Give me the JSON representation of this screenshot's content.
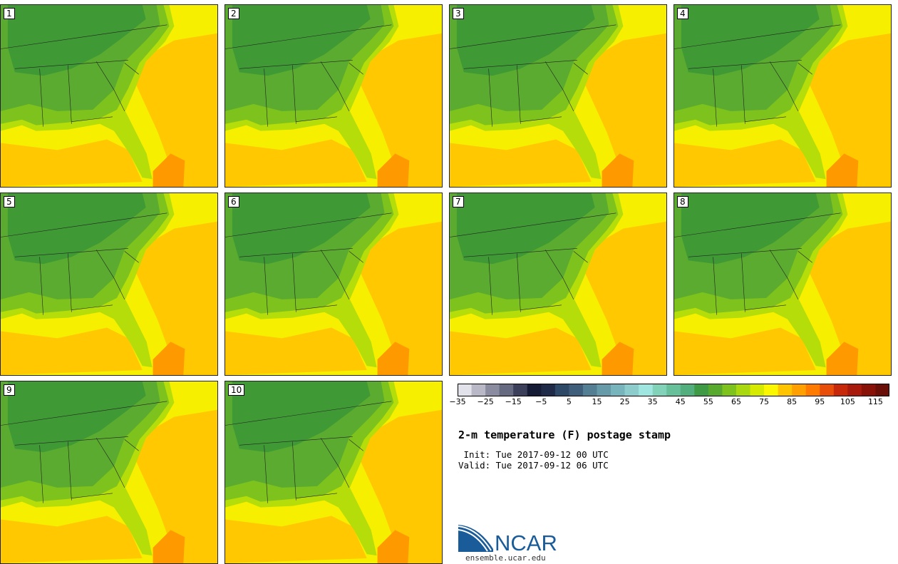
{
  "members": [
    {
      "label": "1"
    },
    {
      "label": "2"
    },
    {
      "label": "3"
    },
    {
      "label": "4"
    },
    {
      "label": "5"
    },
    {
      "label": "6"
    },
    {
      "label": "7"
    },
    {
      "label": "8"
    },
    {
      "label": "9"
    },
    {
      "label": "10"
    }
  ],
  "colors": {
    "ocean_warm": "#f6ef00",
    "gulf": "#ffc800",
    "hot_water": "#ff9900",
    "land_cool": "#3f9a35",
    "land_mid": "#5aab2f",
    "land_warm": "#7ec21d",
    "land_coast": "#b5dd0a",
    "outline": "#222222"
  },
  "colorbar": {
    "colors": [
      "#e2e2ea",
      "#b8b8c6",
      "#8c8ca0",
      "#666a80",
      "#3b3f5a",
      "#151a35",
      "#1e2a48",
      "#2e4868",
      "#3f5e7c",
      "#537e94",
      "#669aa8",
      "#78b4bc",
      "#8ccccc",
      "#a0e6e0",
      "#82d2ba",
      "#68c09a",
      "#52ae7c",
      "#3e9a44",
      "#58aa2e",
      "#7ec21e",
      "#aad80e",
      "#d6ea00",
      "#fbf700",
      "#ffc400",
      "#ff9f00",
      "#ff7a00",
      "#e84e0a",
      "#c8280a",
      "#a81a0c",
      "#881208",
      "#6a0e08"
    ],
    "tick_labels": [
      "−35",
      "−25",
      "−15",
      "−5",
      "5",
      "15",
      "25",
      "35",
      "45",
      "55",
      "65",
      "75",
      "85",
      "95",
      "105",
      "115"
    ]
  },
  "title": "2-m temperature (F) postage stamp",
  "init_text": " Init: Tue 2017-09-12 00 UTC",
  "valid_text": "Valid: Tue 2017-09-12 06 UTC",
  "logo": {
    "brand": "NCAR",
    "url": "ensemble.ucar.edu"
  }
}
